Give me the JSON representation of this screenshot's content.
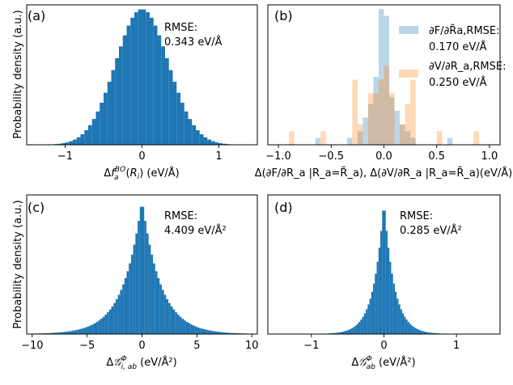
{
  "chart_data": [
    {
      "id": "a",
      "type": "bar",
      "panel_label": "(a)",
      "ylabel": "Probability density (a.u.)",
      "xlabel": "Δf_a^BO(R_i) (eV/Å)",
      "xlabel_parts": {
        "pre": "Δf",
        "sub": "a",
        "sup": "BO",
        "post": "(R",
        "sub2": "i",
        "end": ") (eV/Å)"
      },
      "xlim": [
        -1.5,
        1.5
      ],
      "xticks": [
        -1,
        0,
        1
      ],
      "xtick_labels": [
        "−1",
        "0",
        "1"
      ],
      "ylim": [
        0,
        1.0
      ],
      "annotation": [
        "RMSE:",
        "0.343 eV/Å"
      ],
      "distribution": {
        "shape": "gaussian",
        "center": 0,
        "scale": 0.343,
        "range": [
          -1.45,
          1.45
        ],
        "bin_width": 0.05
      },
      "series_colors": [
        "#1f77b4"
      ]
    },
    {
      "id": "b",
      "type": "bar",
      "panel_label": "(b)",
      "ylabel": "",
      "xlabel": "Δ(∂F/∂R_a |R_a=R̃_a), Δ(∂V/∂R_a |R_a=R̃_a)(eV/Å)",
      "xlim": [
        -1.1,
        1.1
      ],
      "xticks": [
        -1.0,
        -0.5,
        0.0,
        0.5,
        1.0
      ],
      "xtick_labels": [
        "−1.0",
        "−0.5",
        "0.0",
        "0.5",
        "1.0"
      ],
      "ylim": [
        0,
        1.0
      ],
      "series": [
        {
          "name": "∂F/∂R_a",
          "legend": [
            "∂F/∂R̃a,RMSE:",
            "0.170 eV/Å"
          ],
          "color": "#1f77b4",
          "opacity": 0.3,
          "bin_width": 0.05,
          "bins": [
            [
              -0.625,
              0.05
            ],
            [
              -0.325,
              0.05
            ],
            [
              -0.225,
              0.1
            ],
            [
              -0.175,
              0.2
            ],
            [
              -0.125,
              0.3
            ],
            [
              -0.075,
              0.5
            ],
            [
              -0.025,
              1.0
            ],
            [
              0.025,
              0.95
            ],
            [
              0.075,
              0.35
            ],
            [
              0.125,
              0.25
            ],
            [
              0.175,
              0.15
            ],
            [
              0.225,
              0.1
            ],
            [
              0.275,
              0.05
            ],
            [
              0.625,
              0.05
            ]
          ]
        },
        {
          "name": "∂V/∂R_a",
          "legend": [
            "∂V/∂R_a,RMSE:",
            "0.250 eV/Å"
          ],
          "color": "#ff7f0e",
          "opacity": 0.3,
          "bin_width": 0.05,
          "bins": [
            [
              -0.875,
              0.1
            ],
            [
              -0.575,
              0.1
            ],
            [
              -0.275,
              0.48
            ],
            [
              -0.225,
              0.15
            ],
            [
              -0.125,
              0.38
            ],
            [
              -0.075,
              0.38
            ],
            [
              -0.025,
              0.48
            ],
            [
              0.025,
              0.58
            ],
            [
              0.075,
              0.38
            ],
            [
              0.175,
              0.15
            ],
            [
              0.225,
              0.3
            ],
            [
              0.275,
              0.48
            ],
            [
              0.525,
              0.1
            ],
            [
              0.875,
              0.1
            ]
          ]
        }
      ]
    },
    {
      "id": "c",
      "type": "bar",
      "panel_label": "(c)",
      "ylabel": "Probability density (a.u.)",
      "xlabel": "ΔG^Φ_i,ab (eV/Å²)",
      "xlabel_parts": {
        "pre": "ΔG",
        "sub": "i, ab",
        "sup": "Φ",
        "end": " (eV/Å²)"
      },
      "xlim": [
        -10.5,
        10.5
      ],
      "xticks": [
        -10,
        -5,
        0,
        5,
        10
      ],
      "xtick_labels": [
        "−10",
        "−5",
        "0",
        "5",
        "10"
      ],
      "ylim": [
        0,
        1.0
      ],
      "annotation": [
        "RMSE:",
        "4.409 eV/Å²"
      ],
      "distribution": {
        "shape": "laplace",
        "center": 0,
        "scale": 1.7,
        "range": [
          -10,
          10
        ],
        "bin_width": 0.2
      },
      "series_colors": [
        "#1f77b4"
      ]
    },
    {
      "id": "d",
      "type": "bar",
      "panel_label": "(d)",
      "ylabel": "",
      "xlabel": "ΔG^Φ_ab (eV/Å²)",
      "xlabel_parts": {
        "pre": "ΔG",
        "sub": "ab",
        "sup": "Φ",
        "end": " (eV/Å²)"
      },
      "xlim": [
        -1.6,
        1.6
      ],
      "xticks": [
        -1,
        0,
        1
      ],
      "xtick_labels": [
        "−1",
        "0",
        "1"
      ],
      "ylim": [
        0,
        1.0
      ],
      "annotation": [
        "RMSE:",
        "0.285 eV/Å²"
      ],
      "distribution": {
        "shape": "laplace",
        "center": 0,
        "scale": 0.14,
        "range": [
          -1.2,
          1.2
        ],
        "bin_width": 0.025
      },
      "series_colors": [
        "#1f77b4"
      ]
    }
  ]
}
